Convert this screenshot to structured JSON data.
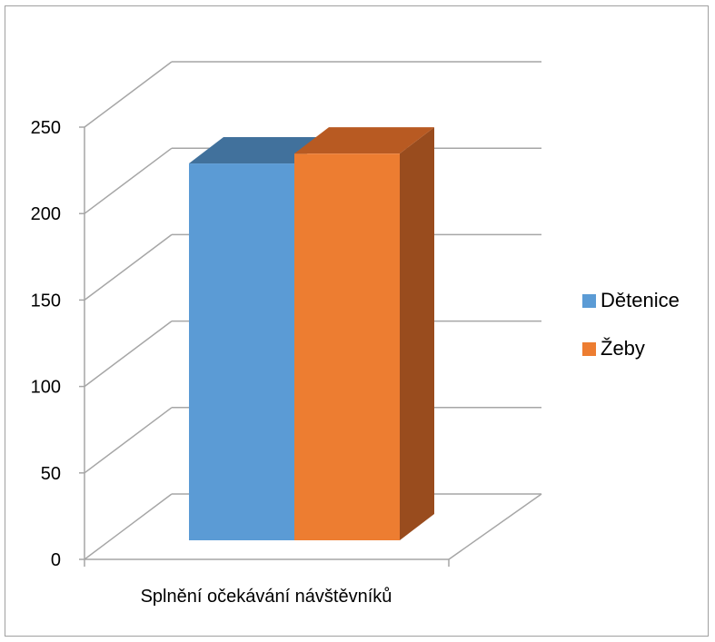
{
  "chart_data": {
    "type": "bar",
    "categories": [
      "Splnění očekávání návštěvníků"
    ],
    "series": [
      {
        "name": "Dětenice",
        "values": [
          229
        ],
        "color": "#5b9bd5",
        "top_color": "#41719c"
      },
      {
        "name": "Žeby",
        "values": [
          235
        ],
        "color": "#ed7d31",
        "top_color": "#b85a22",
        "side_color": "#994c1e"
      }
    ],
    "yticks": [
      "0",
      "50",
      "100",
      "150",
      "200",
      "250"
    ],
    "ylim": [
      0,
      250
    ],
    "grid": true,
    "legend_position": "right",
    "title": "",
    "xlabel": "",
    "ylabel": ""
  }
}
